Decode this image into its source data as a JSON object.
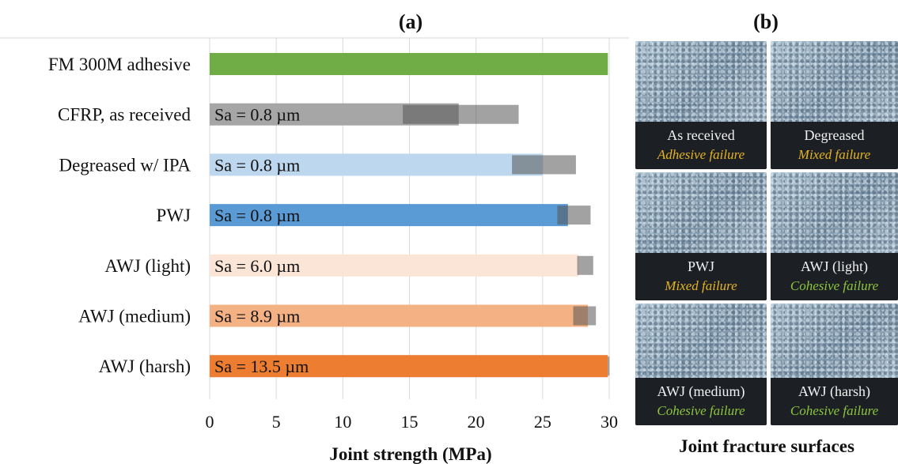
{
  "panel_a_label": "(a)",
  "panel_b_label": "(b)",
  "chart_data": {
    "type": "bar",
    "orientation": "horizontal",
    "xlabel": "Joint strength (MPa)",
    "xlim": [
      0,
      30
    ],
    "xticks": [
      0,
      5,
      10,
      15,
      20,
      25,
      30
    ],
    "grid": true,
    "categories": [
      "FM 300M adhesive",
      "CFRP, as received",
      "Degreased w/ IPA",
      "PWJ",
      "AWJ (light)",
      "AWJ (medium)",
      "AWJ (harsh)"
    ],
    "values": [
      29.9,
      18.7,
      25.0,
      26.9,
      27.7,
      28.4,
      29.9
    ],
    "error_low": [
      null,
      14.5,
      22.7,
      26.1,
      27.6,
      27.3,
      29.9
    ],
    "error_high": [
      null,
      23.2,
      27.5,
      28.6,
      28.8,
      29.0,
      29.9
    ],
    "bar_labels": [
      "",
      "Sa = 0.8 µm",
      "Sa = 0.8 µm",
      "Sa = 0.8 µm",
      "Sa = 6.0 µm",
      "Sa = 8.9 µm",
      "Sa = 13.5 µm"
    ],
    "bar_colors": [
      "#70ad47",
      "#a6a6a6",
      "#bdd7ee",
      "#5b9bd5",
      "#fbe5d6",
      "#f4b183",
      "#ed7d31"
    ],
    "error_color": "#555555"
  },
  "fracture_panel": {
    "caption": "Joint fracture surfaces",
    "photos": [
      {
        "name": "As received",
        "failure": "Adhesive failure",
        "failure_color": "#e6b422"
      },
      {
        "name": "Degreased",
        "failure": "Mixed failure",
        "failure_color": "#e6b422"
      },
      {
        "name": "PWJ",
        "failure": "Mixed failure",
        "failure_color": "#e6b422"
      },
      {
        "name": "AWJ (light)",
        "failure": "Cohesive failure",
        "failure_color": "#8cc63f"
      },
      {
        "name": "AWJ (medium)",
        "failure": "Cohesive failure",
        "failure_color": "#8cc63f"
      },
      {
        "name": "AWJ (harsh)",
        "failure": "Cohesive failure",
        "failure_color": "#8cc63f"
      }
    ]
  }
}
